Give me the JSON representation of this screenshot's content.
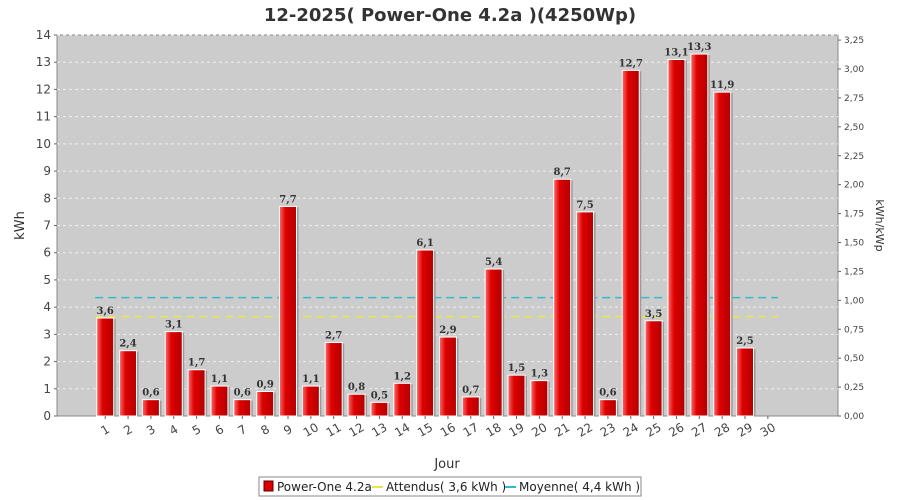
{
  "chart_data": {
    "type": "bar",
    "title": "12-2025( Power-One 4.2a )(4250Wp)",
    "xlabel": "Jour",
    "ylabel": "kWh",
    "y2label": "kWh/kWp",
    "ylim": [
      0,
      14
    ],
    "y2lim": [
      0,
      3.294
    ],
    "yticks": [
      "0",
      "1",
      "2",
      "3",
      "4",
      "5",
      "6",
      "7",
      "8",
      "9",
      "10",
      "11",
      "12",
      "13",
      "14"
    ],
    "y2ticks": [
      "0,00",
      "0,25",
      "0,50",
      "0,75",
      "1,00",
      "1,25",
      "1,50",
      "1,75",
      "2,00",
      "2,25",
      "2,50",
      "2,75",
      "3,00",
      "3,25"
    ],
    "categories": [
      "1",
      "2",
      "3",
      "4",
      "5",
      "6",
      "7",
      "8",
      "9",
      "10",
      "11",
      "12",
      "13",
      "14",
      "15",
      "16",
      "17",
      "18",
      "19",
      "20",
      "21",
      "22",
      "23",
      "24",
      "25",
      "26",
      "27",
      "28",
      "29",
      "30"
    ],
    "series": [
      {
        "name": "Power-One 4.2a",
        "color": "#dd0000",
        "values": [
          3.6,
          2.4,
          0.6,
          3.1,
          1.7,
          1.1,
          0.6,
          0.9,
          7.7,
          1.1,
          2.7,
          0.8,
          0.5,
          1.2,
          6.1,
          2.9,
          0.7,
          5.4,
          1.5,
          1.3,
          8.7,
          7.5,
          0.6,
          12.7,
          3.5,
          13.1,
          13.3,
          11.9,
          2.5,
          null
        ],
        "labels": [
          "3,6",
          "2,4",
          "0,6",
          "3,1",
          "1,7",
          "1,1",
          "0,6",
          "0,9",
          "7,7",
          "1,1",
          "2,7",
          "0,8",
          "0,5",
          "1,2",
          "6,1",
          "2,9",
          "0,7",
          "5,4",
          "1,5",
          "1,3",
          "8,7",
          "7,5",
          "0,6",
          "12,7",
          "3,5",
          "13,1",
          "13,3",
          "11,9",
          "2,5",
          ""
        ]
      }
    ],
    "reference_lines": [
      {
        "name": "Attendus( 3,6 kWh )",
        "value": 3.65,
        "color": "#e6e650"
      },
      {
        "name": "Moyenne( 4,4 kWh )",
        "value": 4.35,
        "color": "#33bbcc"
      }
    ],
    "grid": true,
    "legend_position": "bottom"
  }
}
